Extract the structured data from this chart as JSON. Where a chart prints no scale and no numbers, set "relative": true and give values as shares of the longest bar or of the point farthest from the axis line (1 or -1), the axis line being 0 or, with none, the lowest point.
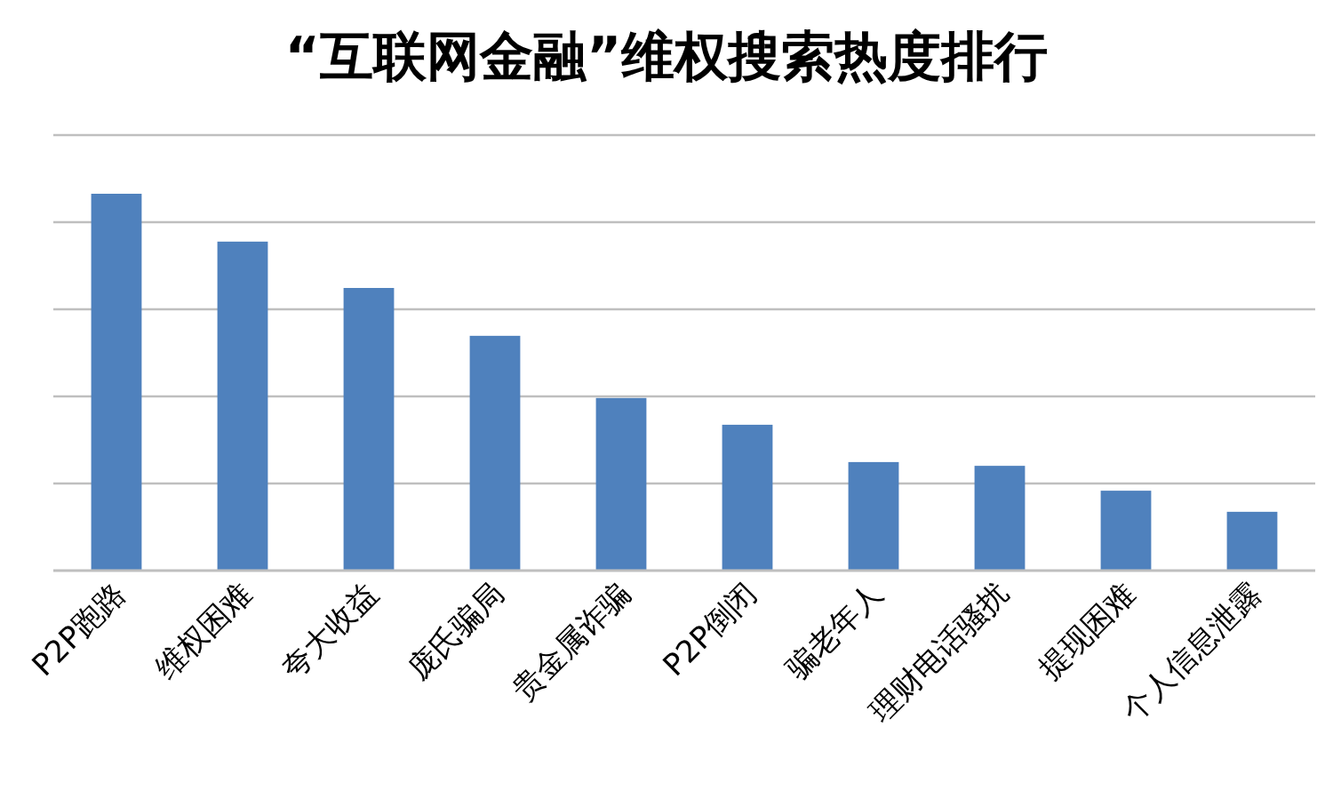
{
  "chart_data": {
    "type": "bar",
    "title": "“互联网金融”维权搜索热度排行",
    "relative": true,
    "grid": "y",
    "color": "#4f81bd",
    "categories": [
      "P2P跑路",
      "维权困难",
      "夸大收益",
      "庞氏骗局",
      "贵金属诈骗",
      "P2P倒闭",
      "骗老年人",
      "理财电话骚扰",
      "提现困难",
      "个人信息泄露"
    ],
    "values": [
      1,
      0.873,
      0.75,
      0.623,
      0.458,
      0.387,
      0.288,
      0.278,
      0.212,
      0.156
    ]
  }
}
